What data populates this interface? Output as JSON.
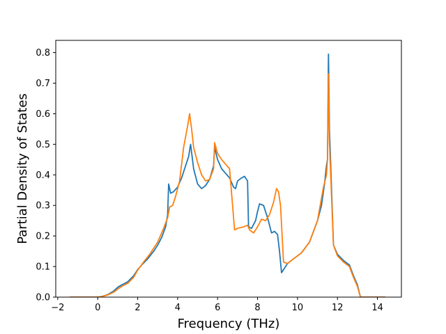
{
  "chart_data": {
    "type": "line",
    "title": "",
    "xlabel": "Frequency (THz)",
    "ylabel": "Partial Density of States",
    "xlim": [
      -2.1,
      15.2
    ],
    "ylim": [
      0,
      0.84
    ],
    "grid": false,
    "legend": "none",
    "xticks": [
      -2,
      0,
      2,
      4,
      6,
      8,
      10,
      12,
      14
    ],
    "xtick_labels": [
      "−2",
      "0",
      "2",
      "4",
      "6",
      "8",
      "10",
      "12",
      "14"
    ],
    "yticks": [
      0.0,
      0.1,
      0.2,
      0.3,
      0.4,
      0.5,
      0.6,
      0.7,
      0.8
    ],
    "ytick_labels": [
      "0.0",
      "0.1",
      "0.2",
      "0.3",
      "0.4",
      "0.5",
      "0.6",
      "0.7",
      "0.8"
    ],
    "series": [
      {
        "color": "#1f77b4",
        "x": [
          -1.4,
          0,
          0.2,
          0.5,
          0.8,
          1.0,
          1.2,
          1.5,
          1.8,
          2.0,
          2.2,
          2.5,
          2.8,
          3.0,
          3.2,
          3.4,
          3.5,
          3.55,
          3.65,
          3.8,
          4.0,
          4.2,
          4.4,
          4.55,
          4.65,
          4.8,
          5.0,
          5.2,
          5.4,
          5.6,
          5.8,
          5.85,
          6.0,
          6.2,
          6.4,
          6.6,
          6.8,
          6.9,
          7.0,
          7.2,
          7.35,
          7.5,
          7.55,
          7.7,
          7.9,
          8.0,
          8.1,
          8.3,
          8.5,
          8.7,
          8.85,
          9.0,
          9.1,
          9.2,
          9.3,
          9.5,
          9.8,
          10.2,
          10.6,
          11.0,
          11.2,
          11.35,
          11.45,
          11.5,
          11.55,
          11.6,
          11.8,
          12.0,
          12.3,
          12.6,
          12.8,
          13.0,
          13.15,
          13.3,
          14.4
        ],
        "y": [
          0,
          0,
          0.002,
          0.008,
          0.02,
          0.032,
          0.04,
          0.05,
          0.07,
          0.09,
          0.105,
          0.125,
          0.15,
          0.17,
          0.195,
          0.23,
          0.27,
          0.37,
          0.34,
          0.345,
          0.36,
          0.39,
          0.43,
          0.46,
          0.5,
          0.42,
          0.37,
          0.355,
          0.365,
          0.385,
          0.43,
          0.49,
          0.45,
          0.42,
          0.405,
          0.39,
          0.36,
          0.355,
          0.38,
          0.39,
          0.395,
          0.38,
          0.23,
          0.225,
          0.25,
          0.28,
          0.305,
          0.3,
          0.26,
          0.21,
          0.215,
          0.205,
          0.15,
          0.08,
          0.09,
          0.11,
          0.125,
          0.145,
          0.18,
          0.25,
          0.3,
          0.37,
          0.43,
          0.45,
          0.795,
          0.55,
          0.17,
          0.14,
          0.12,
          0.105,
          0.07,
          0.04,
          0.0,
          0,
          0
        ]
      },
      {
        "color": "#ff7f0e",
        "x": [
          -1.4,
          0,
          0.2,
          0.5,
          0.8,
          1.0,
          1.2,
          1.5,
          1.8,
          2.0,
          2.3,
          2.6,
          3.0,
          3.3,
          3.5,
          3.6,
          3.75,
          3.9,
          4.1,
          4.3,
          4.5,
          4.6,
          4.7,
          4.8,
          5.0,
          5.2,
          5.4,
          5.6,
          5.8,
          5.85,
          6.0,
          6.2,
          6.4,
          6.6,
          6.7,
          6.85,
          7.0,
          7.3,
          7.5,
          7.6,
          7.8,
          8.0,
          8.2,
          8.4,
          8.6,
          8.8,
          8.95,
          9.05,
          9.15,
          9.3,
          9.5,
          9.8,
          10.2,
          10.6,
          11.0,
          11.3,
          11.45,
          11.5,
          11.55,
          11.6,
          11.8,
          12.0,
          12.3,
          12.6,
          12.8,
          13.0,
          13.15,
          13.3,
          14.4
        ],
        "y": [
          0,
          0,
          0.002,
          0.007,
          0.016,
          0.026,
          0.035,
          0.045,
          0.065,
          0.088,
          0.115,
          0.14,
          0.18,
          0.225,
          0.26,
          0.295,
          0.3,
          0.33,
          0.38,
          0.49,
          0.56,
          0.6,
          0.55,
          0.49,
          0.44,
          0.4,
          0.38,
          0.385,
          0.42,
          0.505,
          0.47,
          0.45,
          0.435,
          0.42,
          0.34,
          0.22,
          0.225,
          0.23,
          0.235,
          0.22,
          0.21,
          0.23,
          0.255,
          0.25,
          0.27,
          0.31,
          0.355,
          0.345,
          0.3,
          0.115,
          0.11,
          0.125,
          0.145,
          0.18,
          0.25,
          0.36,
          0.4,
          0.45,
          0.73,
          0.5,
          0.17,
          0.135,
          0.115,
          0.1,
          0.065,
          0.035,
          0.0,
          0,
          0
        ]
      }
    ]
  }
}
